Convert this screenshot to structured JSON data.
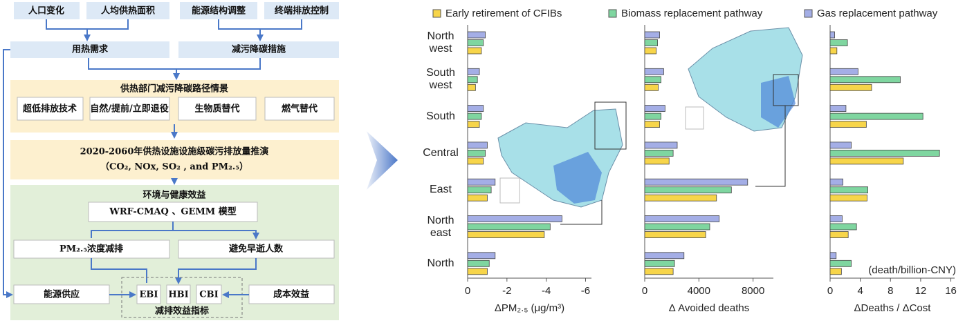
{
  "diagram": {
    "inputs": [
      "人口变化",
      "人均供热面积",
      "能源结构调整",
      "终端排放控制"
    ],
    "demand": "用热需求",
    "measures": "减污降碳措施",
    "scenario_title": "供热部门减污降碳路径情景",
    "scenarios": [
      "超低排放技术",
      "自然/提前/立即退役",
      "生物质替代",
      "燃气替代"
    ],
    "projection": [
      "2020-2060年供热设施设施级碳污排放量推演",
      "（CO₂, NOx, SO₂ , and PM₂.₅）"
    ],
    "benefit_title": "环境与健康效益",
    "model": "WRF-CMAQ 、GEMM 模型",
    "pm": "PM₂.₅浓度减排",
    "deaths": "避免早逝人数",
    "energy": "能源供应",
    "cost": "成本效益",
    "indices": [
      "EBI",
      "HBI",
      "CBI"
    ],
    "index_title": "减排效益指标"
  },
  "chart_data": [
    {
      "type": "bar",
      "orientation": "horizontal",
      "x_label": "ΔPM₂.₅ (μg/m³)",
      "categories": [
        "North west",
        "South west",
        "South",
        "Central",
        "East",
        "North east",
        "North"
      ],
      "xlim": [
        0,
        -6.3
      ],
      "xticks": [
        0,
        -2,
        -4,
        -6
      ],
      "series": [
        {
          "name": "Early retirement of CFIBs",
          "color": "#f7d54a",
          "values": [
            -0.7,
            -0.4,
            -0.6,
            -0.8,
            -1.0,
            -3.9,
            -1.0
          ]
        },
        {
          "name": "Biomass replacement pathway",
          "color": "#7fd6a0",
          "values": [
            -0.8,
            -0.5,
            -0.7,
            -0.9,
            -1.2,
            -4.2,
            -1.1
          ]
        },
        {
          "name": "Gas replacement pathway",
          "color": "#a4aee6",
          "values": [
            -0.9,
            -0.6,
            -0.8,
            -1.0,
            -1.4,
            -4.8,
            -1.4
          ]
        }
      ]
    },
    {
      "type": "bar",
      "orientation": "horizontal",
      "x_label": "Δ Avoided deaths",
      "xlim": [
        0,
        9500
      ],
      "xticks": [
        0,
        4000,
        8000
      ],
      "series": [
        {
          "color": "#f7d54a",
          "values": [
            850,
            1000,
            1100,
            1800,
            5300,
            4500,
            2100
          ]
        },
        {
          "color": "#7fd6a0",
          "values": [
            950,
            1200,
            1200,
            2100,
            6400,
            4800,
            2200
          ]
        },
        {
          "color": "#a4aee6",
          "values": [
            1100,
            1400,
            1500,
            2400,
            7600,
            5500,
            2900
          ]
        }
      ]
    },
    {
      "type": "bar",
      "orientation": "horizontal",
      "x_label": "ΔDeaths / ΔCost",
      "annotation": "(death/billion-CNY)",
      "xlim": [
        0,
        16.5
      ],
      "xticks": [
        0,
        4,
        8,
        12,
        16
      ],
      "series": [
        {
          "color": "#f7d54a",
          "values": [
            0.9,
            5.5,
            4.8,
            9.7,
            4.9,
            2.4,
            1.5
          ]
        },
        {
          "color": "#7fd6a0",
          "values": [
            2.3,
            9.3,
            12.3,
            14.5,
            5.0,
            3.5,
            2.8
          ]
        },
        {
          "color": "#a4aee6",
          "values": [
            0.6,
            3.7,
            2.1,
            2.8,
            1.7,
            1.6,
            0.8
          ]
        }
      ]
    }
  ]
}
